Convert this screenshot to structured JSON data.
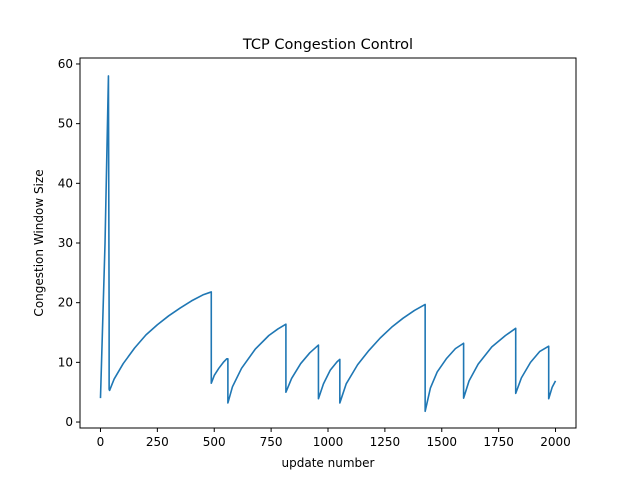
{
  "chart_data": {
    "type": "line",
    "title": "TCP Congestion Control",
    "xlabel": "update number",
    "ylabel": "Congestion Window Size",
    "xlim": [
      -90,
      2090
    ],
    "ylim": [
      -1,
      61
    ],
    "xticks": [
      0,
      250,
      500,
      750,
      1000,
      1250,
      1500,
      1750,
      2000
    ],
    "yticks": [
      0,
      10,
      20,
      30,
      40,
      50,
      60
    ],
    "grid": false,
    "series": [
      {
        "color": "#1f77b4",
        "x": [
          0,
          20,
          35,
          38,
          38,
          40,
          60,
          100,
          150,
          200,
          250,
          300,
          350,
          400,
          450,
          487,
          487,
          500,
          520,
          540,
          555,
          560,
          560,
          580,
          620,
          680,
          740,
          780,
          815,
          815,
          840,
          880,
          920,
          958,
          958,
          980,
          1010,
          1040,
          1052,
          1052,
          1080,
          1130,
          1180,
          1230,
          1280,
          1330,
          1380,
          1427,
          1427,
          1450,
          1480,
          1520,
          1560,
          1596,
          1596,
          1620,
          1660,
          1720,
          1780,
          1825,
          1825,
          1850,
          1890,
          1930,
          1970,
          1970,
          1985,
          2000
        ],
        "y": [
          4,
          30,
          58,
          17.5,
          5.5,
          5.3,
          7.2,
          9.8,
          12.4,
          14.6,
          16.3,
          17.8,
          19.1,
          20.3,
          21.3,
          21.8,
          6.5,
          7.8,
          9.0,
          10.0,
          10.6,
          10.6,
          3.2,
          5.9,
          9.0,
          12.2,
          14.5,
          15.6,
          16.4,
          5.0,
          7.3,
          9.8,
          11.6,
          12.9,
          3.9,
          6.4,
          8.7,
          10.1,
          10.5,
          3.2,
          6.4,
          9.6,
          12.0,
          14.1,
          15.9,
          17.4,
          18.7,
          19.7,
          1.8,
          5.7,
          8.4,
          10.6,
          12.3,
          13.2,
          4.0,
          6.9,
          9.7,
          12.6,
          14.5,
          15.7,
          4.8,
          7.4,
          10.0,
          11.8,
          12.7,
          3.9,
          5.8,
          6.9
        ]
      }
    ]
  }
}
